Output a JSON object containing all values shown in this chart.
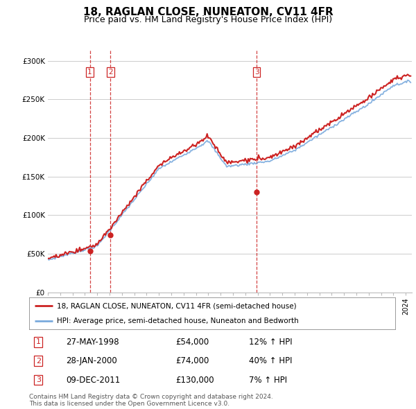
{
  "title": "18, RAGLAN CLOSE, NUNEATON, CV11 4FR",
  "subtitle": "Price paid vs. HM Land Registry's House Price Index (HPI)",
  "title_fontsize": 11,
  "subtitle_fontsize": 9,
  "ylabel_ticks": [
    "£0",
    "£50K",
    "£100K",
    "£150K",
    "£200K",
    "£250K",
    "£300K"
  ],
  "ytick_vals": [
    0,
    50000,
    100000,
    150000,
    200000,
    250000,
    300000
  ],
  "ylim": [
    0,
    315000
  ],
  "xlim_start": 1995.0,
  "xlim_end": 2024.5,
  "red_line_label": "18, RAGLAN CLOSE, NUNEATON, CV11 4FR (semi-detached house)",
  "blue_line_label": "HPI: Average price, semi-detached house, Nuneaton and Bedworth",
  "sales": [
    {
      "num": 1,
      "date": "27-MAY-1998",
      "price": 54000,
      "change": "12% ↑ HPI",
      "x": 1998.4
    },
    {
      "num": 2,
      "date": "28-JAN-2000",
      "price": 74000,
      "change": "40% ↑ HPI",
      "x": 2000.08
    },
    {
      "num": 3,
      "date": "09-DEC-2011",
      "price": 130000,
      "change": "7% ↑ HPI",
      "x": 2011.92
    }
  ],
  "footer": "Contains HM Land Registry data © Crown copyright and database right 2024.\nThis data is licensed under the Open Government Licence v3.0.",
  "bg_color": "#ffffff",
  "grid_color": "#cccccc",
  "red_color": "#cc2222",
  "blue_color": "#7aaadd"
}
